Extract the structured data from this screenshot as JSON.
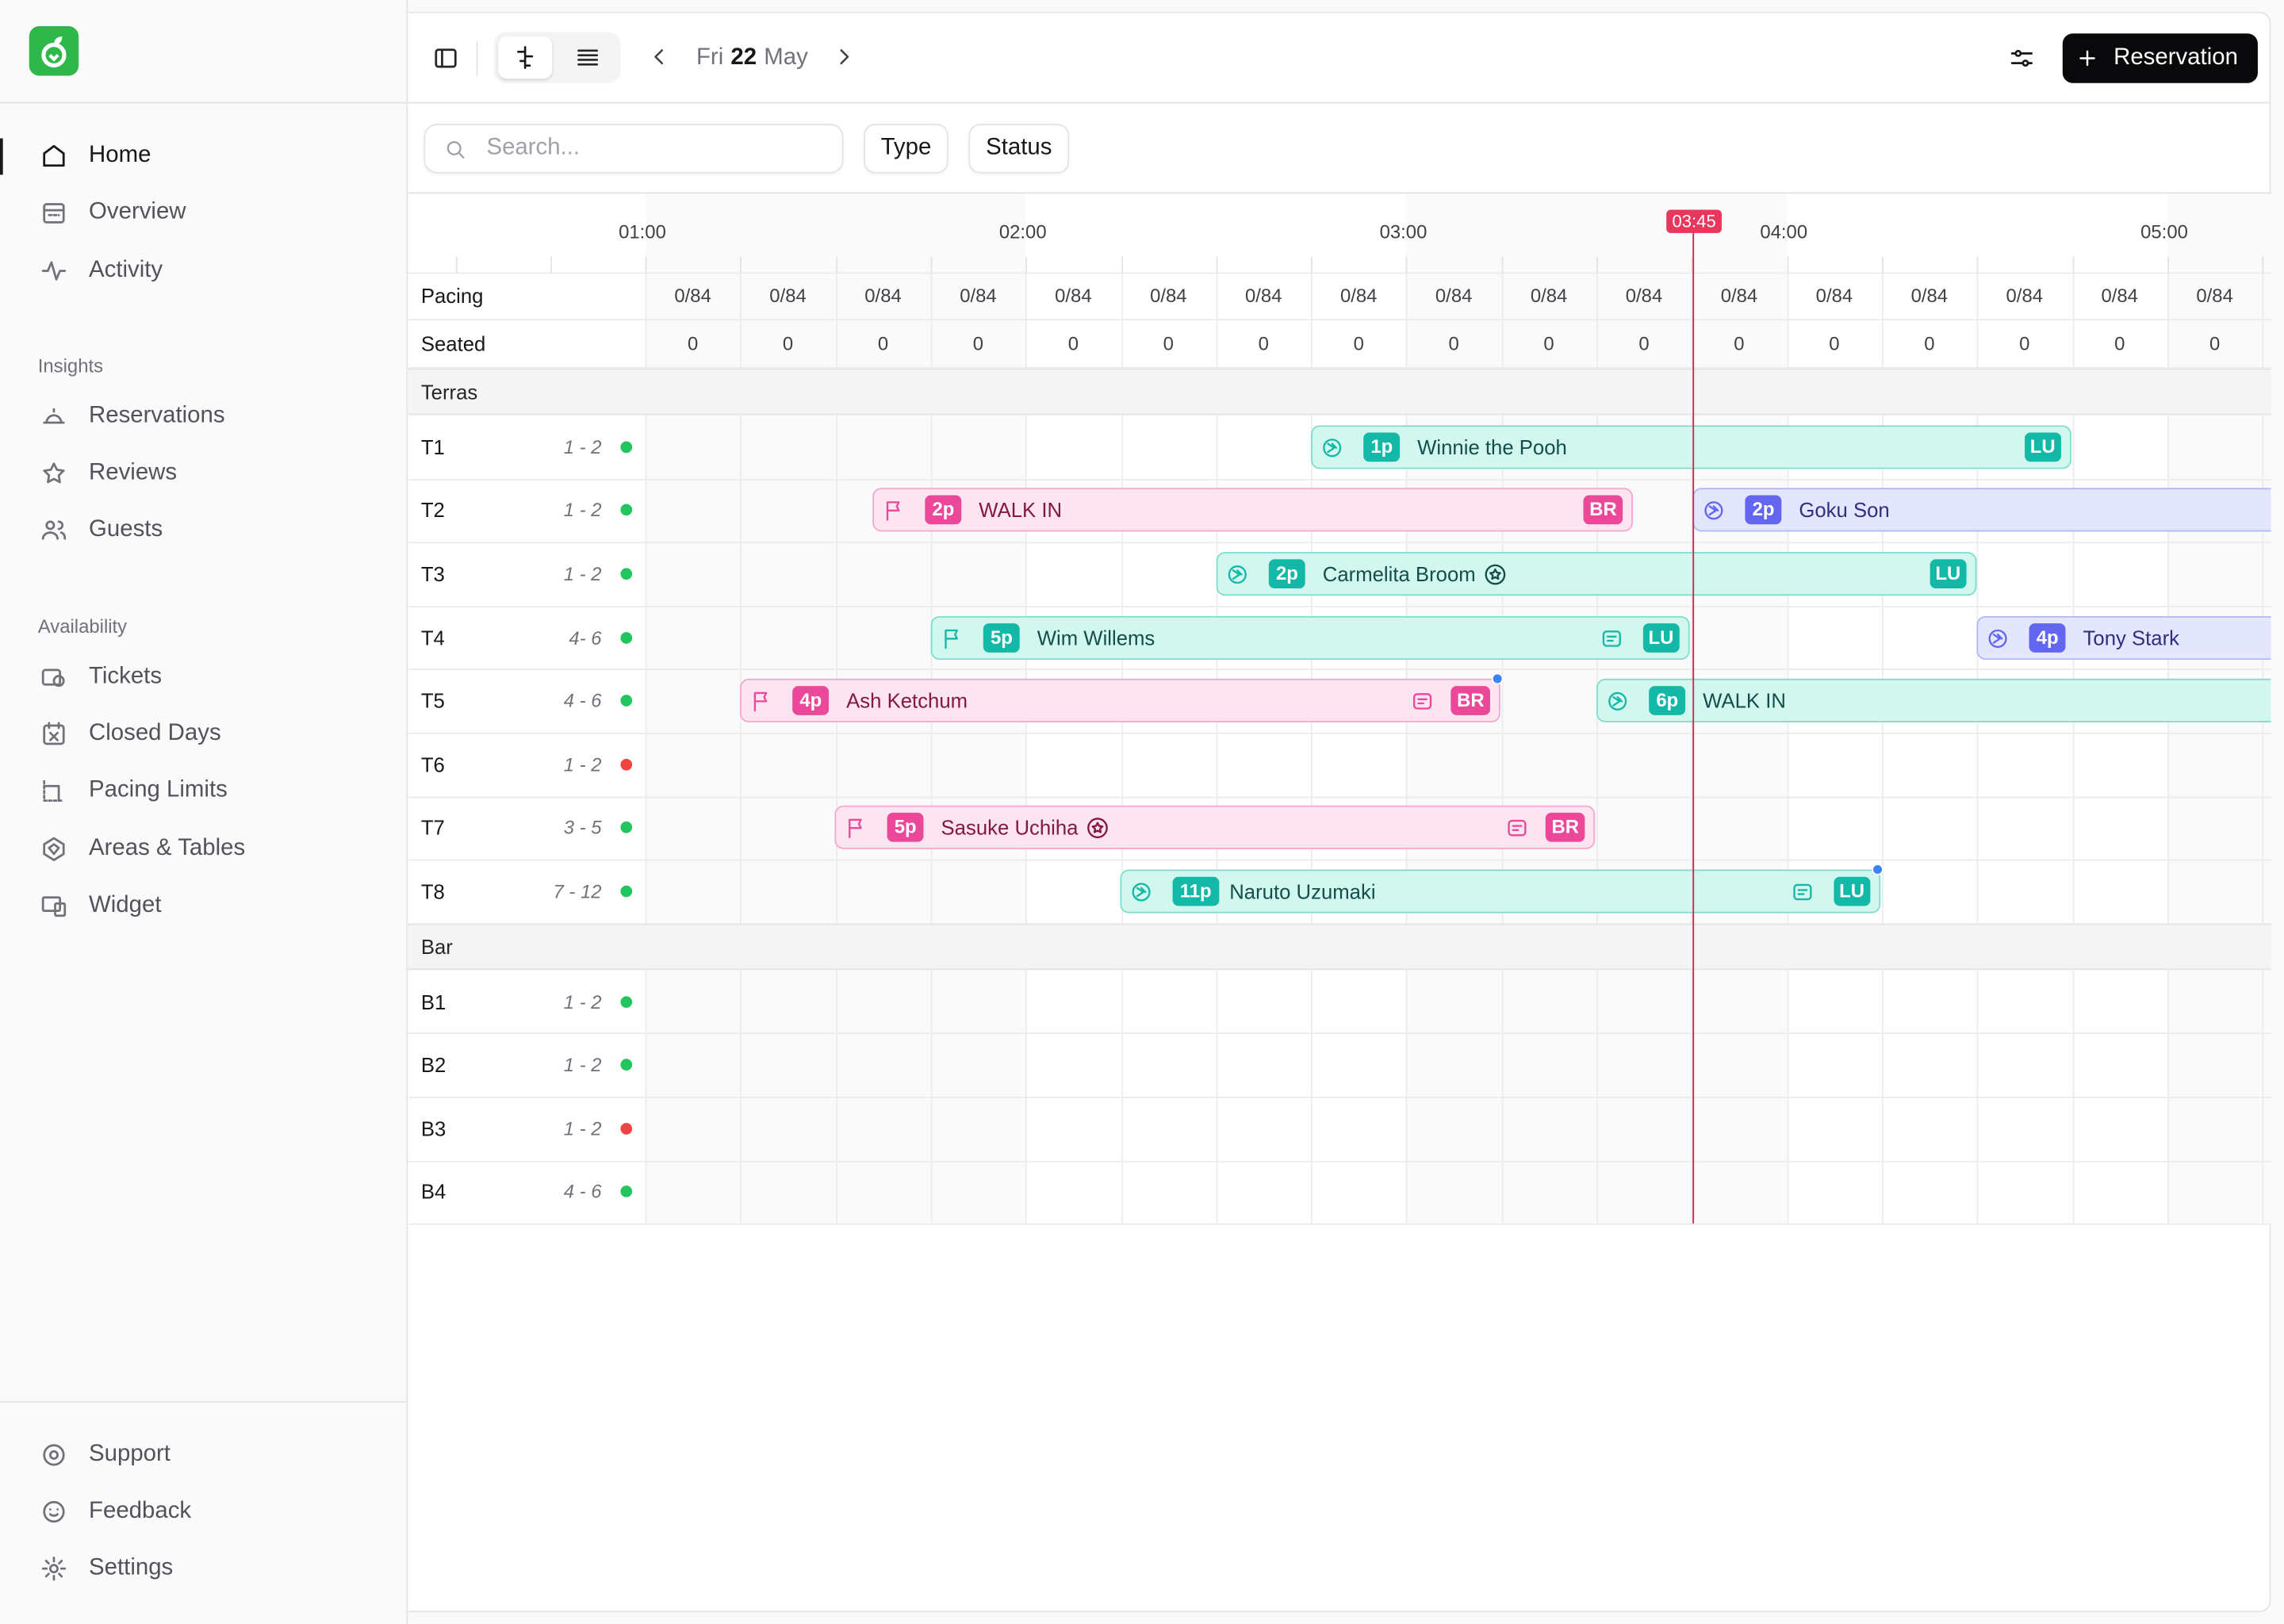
{
  "sidebar": {
    "nav": [
      "Home",
      "Overview",
      "Activity"
    ],
    "groups": [
      {
        "title": "Insights",
        "items": [
          "Reservations",
          "Reviews",
          "Guests"
        ]
      },
      {
        "title": "Availability",
        "items": [
          "Tickets",
          "Closed Days",
          "Pacing Limits",
          "Areas & Tables",
          "Widget"
        ]
      }
    ],
    "footer": [
      "Support",
      "Feedback",
      "Settings"
    ]
  },
  "toolbar": {
    "weekday": "Fri",
    "day": "22",
    "month": "May",
    "new_button": "Reservation"
  },
  "filters": {
    "search_placeholder": "Search...",
    "type": "Type",
    "status": "Status"
  },
  "timeline": {
    "hours": [
      "01:00",
      "02:00",
      "03:00",
      "04:00",
      "05:00"
    ],
    "now": "03:45",
    "pacing_label": "Pacing",
    "seated_label": "Seated",
    "pacing": [
      "0/84",
      "0/84",
      "0/84",
      "0/84",
      "0/84",
      "0/84",
      "0/84",
      "0/84",
      "0/84",
      "0/84",
      "0/84",
      "0/84",
      "0/84",
      "0/84",
      "0/84",
      "0/84",
      "0/84"
    ],
    "seated": [
      0,
      0,
      0,
      0,
      0,
      0,
      0,
      0,
      0,
      0,
      0,
      0,
      0,
      0,
      0,
      0,
      0
    ],
    "areas": [
      {
        "name": "Terras",
        "tables": [
          {
            "name": "T1",
            "capacity": "1 - 2",
            "dot": "#22c55e",
            "reservations": [
              {
                "icon": "seated",
                "party": "1p",
                "name": "Winnie the Pooh",
                "tag": "LU",
                "color": "#14b8a6"
              }
            ]
          },
          {
            "name": "T2",
            "capacity": "1 - 2",
            "dot": "#22c55e",
            "reservations": [
              {
                "icon": "flag",
                "party": "2p",
                "name": "WALK IN",
                "tag": "BR",
                "color": "#ec4899"
              },
              {
                "icon": "seated",
                "party": "2p",
                "name": "Goku Son",
                "color": "#6366f1"
              }
            ]
          },
          {
            "name": "T3",
            "capacity": "1 - 2",
            "dot": "#22c55e",
            "reservations": [
              {
                "icon": "seated",
                "party": "2p",
                "name": "Carmelita Broom",
                "star": true,
                "tag": "LU",
                "color": "#14b8a6"
              }
            ]
          },
          {
            "name": "T4",
            "capacity": "4- 6",
            "dot": "#22c55e",
            "reservations": [
              {
                "icon": "flag",
                "party": "5p",
                "name": "Wim Willems",
                "note": true,
                "tag": "LU",
                "color": "#14b8a6"
              },
              {
                "icon": "seated",
                "party": "4p",
                "name": "Tony Stark",
                "color": "#6366f1"
              }
            ]
          },
          {
            "name": "T5",
            "capacity": "4 - 6",
            "dot": "#22c55e",
            "reservations": [
              {
                "icon": "flag",
                "party": "4p",
                "name": "Ash Ketchum",
                "note": true,
                "tag": "BR",
                "unread": true,
                "color": "#ec4899"
              },
              {
                "icon": "seated",
                "party": "6p",
                "name": "WALK IN",
                "color": "#14b8a6"
              }
            ]
          },
          {
            "name": "T6",
            "capacity": "1 - 2",
            "dot": "#ef4444",
            "reservations": []
          },
          {
            "name": "T7",
            "capacity": "3 - 5",
            "dot": "#22c55e",
            "reservations": [
              {
                "icon": "flag",
                "party": "5p",
                "name": "Sasuke Uchiha",
                "star": true,
                "note": true,
                "tag": "BR",
                "color": "#ec4899"
              }
            ]
          },
          {
            "name": "T8",
            "capacity": "7 - 12",
            "dot": "#22c55e",
            "reservations": [
              {
                "icon": "seated",
                "party": "11p",
                "name": "Naruto Uzumaki",
                "note": true,
                "tag": "LU",
                "unread": true,
                "color": "#14b8a6"
              }
            ]
          }
        ]
      },
      {
        "name": "Bar",
        "tables": [
          {
            "name": "B1",
            "capacity": "1 - 2",
            "dot": "#22c55e",
            "reservations": []
          },
          {
            "name": "B2",
            "capacity": "1 - 2",
            "dot": "#22c55e",
            "reservations": []
          },
          {
            "name": "B3",
            "capacity": "1 - 2",
            "dot": "#ef4444",
            "reservations": []
          },
          {
            "name": "B4",
            "capacity": "4 - 6",
            "dot": "#22c55e",
            "reservations": []
          }
        ]
      }
    ]
  }
}
